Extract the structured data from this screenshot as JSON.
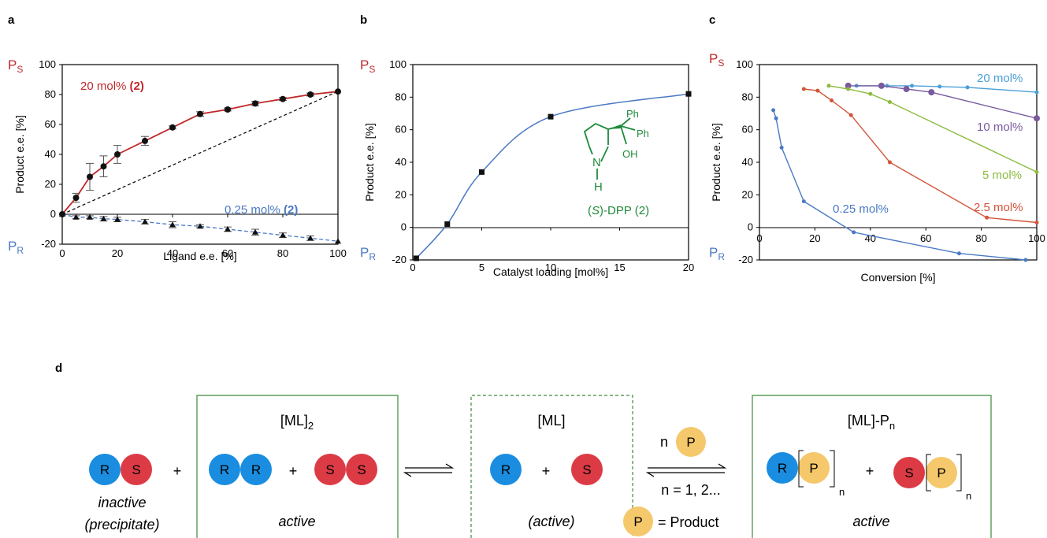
{
  "panels": {
    "a": "a",
    "b": "b",
    "c": "c",
    "d": "d"
  },
  "colors": {
    "red": "#c0292b",
    "blue": "#4a79c4",
    "green_text": "#1f8a3b",
    "purple": "#7a5a9e",
    "lightblue": "#4a9fd8",
    "lime": "#8bbb3f",
    "orange_red": "#d2553a",
    "ball_blue": "#1a8de0",
    "ball_red": "#dc3b45",
    "ball_yellow": "#f5c86b",
    "box_green": "#3c8a3c"
  },
  "common": {
    "ps_main": "P",
    "ps_sub": "S",
    "pr_main": "P",
    "pr_sub": "R"
  },
  "chart_data": [
    {
      "type": "scatter",
      "panel": "a",
      "xlabel": "Ligand e.e. [%]",
      "ylabel": "Product e.e. [%]",
      "xlim": [
        0,
        100
      ],
      "ylim": [
        -20,
        100
      ],
      "xticks": [
        "0",
        "20",
        "40",
        "60",
        "80",
        "100"
      ],
      "yticks": [
        "-20",
        "0",
        "20",
        "40",
        "60",
        "80",
        "100"
      ],
      "series": [
        {
          "name": "20 mol% (2)",
          "label_main": "20 mol% ",
          "label_bold": "(2)",
          "marker": "circle",
          "x": [
            0,
            5,
            10,
            15,
            20,
            30,
            40,
            50,
            60,
            70,
            80,
            90,
            100
          ],
          "y": [
            0,
            11,
            25,
            32,
            40,
            49,
            58,
            67,
            70,
            74,
            77,
            80,
            82
          ],
          "err": [
            0,
            3,
            9,
            7,
            6,
            3,
            1,
            1.5,
            1,
            1.5,
            1,
            1,
            0
          ]
        },
        {
          "name": "0.25 mol% (2)",
          "label_main": "0.25 mol% ",
          "label_bold": "(2)",
          "marker": "triangle",
          "x": [
            0,
            5,
            10,
            15,
            20,
            30,
            40,
            50,
            60,
            70,
            80,
            90,
            100
          ],
          "y": [
            0,
            -2,
            -2,
            -3,
            -3.5,
            -5,
            -7,
            -8,
            -10,
            -12,
            -14,
            -16,
            -18
          ],
          "err": [
            0,
            1,
            1,
            1.5,
            1.5,
            1.5,
            2,
            1,
            1.5,
            2,
            1.5,
            1.5,
            0
          ]
        }
      ]
    },
    {
      "type": "line",
      "panel": "b",
      "xlabel": "Catalyst loading [mol%]",
      "ylabel": "Product e.e. [%]",
      "xlim": [
        0,
        20
      ],
      "ylim": [
        -20,
        100
      ],
      "xticks": [
        "0",
        "5",
        "10",
        "15",
        "20"
      ],
      "yticks": [
        "-20",
        "0",
        "20",
        "40",
        "60",
        "80",
        "100"
      ],
      "x": [
        0.25,
        2.5,
        5,
        10,
        20
      ],
      "y": [
        -19,
        2,
        34,
        68,
        82
      ],
      "molecule_label_italic": "S",
      "molecule_label_pre": "(",
      "molecule_label_post": ")-DPP (2)",
      "molecule_ph1": "Ph",
      "molecule_ph2": "Ph",
      "molecule_oh": "OH",
      "molecule_n": "N",
      "molecule_h": "H"
    },
    {
      "type": "line",
      "panel": "c",
      "xlabel": "Conversion [%]",
      "ylabel": "Product e.e. [%]",
      "xlim": [
        0,
        100
      ],
      "ylim": [
        -20,
        100
      ],
      "xticks": [
        "0",
        "20",
        "40",
        "60",
        "80",
        "100"
      ],
      "yticks": [
        "-20",
        "0",
        "20",
        "40",
        "60",
        "80",
        "100"
      ],
      "series": [
        {
          "name": "20 mol%",
          "x": [
            35,
            46,
            55,
            65,
            75,
            100
          ],
          "y": [
            87,
            87,
            87,
            86.5,
            86,
            83
          ]
        },
        {
          "name": "10 mol%",
          "x": [
            32,
            44,
            53,
            62,
            100
          ],
          "y": [
            87,
            87,
            85,
            83,
            67
          ]
        },
        {
          "name": "5 mol%",
          "x": [
            25,
            32,
            40,
            47,
            100
          ],
          "y": [
            87,
            85,
            82,
            77,
            34
          ]
        },
        {
          "name": "2.5 mol%",
          "x": [
            16,
            21,
            26,
            33,
            47,
            82,
            100
          ],
          "y": [
            85,
            84,
            78,
            69,
            40,
            6,
            3
          ]
        },
        {
          "name": "0.25 mol%",
          "x": [
            5,
            6,
            8,
            16,
            34,
            72,
            96
          ],
          "y": [
            72,
            67,
            49,
            16,
            -3,
            -16,
            -20
          ]
        }
      ]
    }
  ],
  "scheme": {
    "r": "R",
    "s": "S",
    "p": "P",
    "plus": "+",
    "inactive": "inactive",
    "precipitate": "(precipitate)",
    "ml2_main": "[ML]",
    "ml2_sub": "2",
    "active": "active",
    "ml": "[ML]",
    "active_paren": "(active)",
    "mlpn_main": "[ML]-P",
    "mlpn_sub": "n",
    "n_label": "n",
    "n_range": "n = 1, 2...",
    "eq_product": "= Product",
    "bracket_n": "n"
  }
}
